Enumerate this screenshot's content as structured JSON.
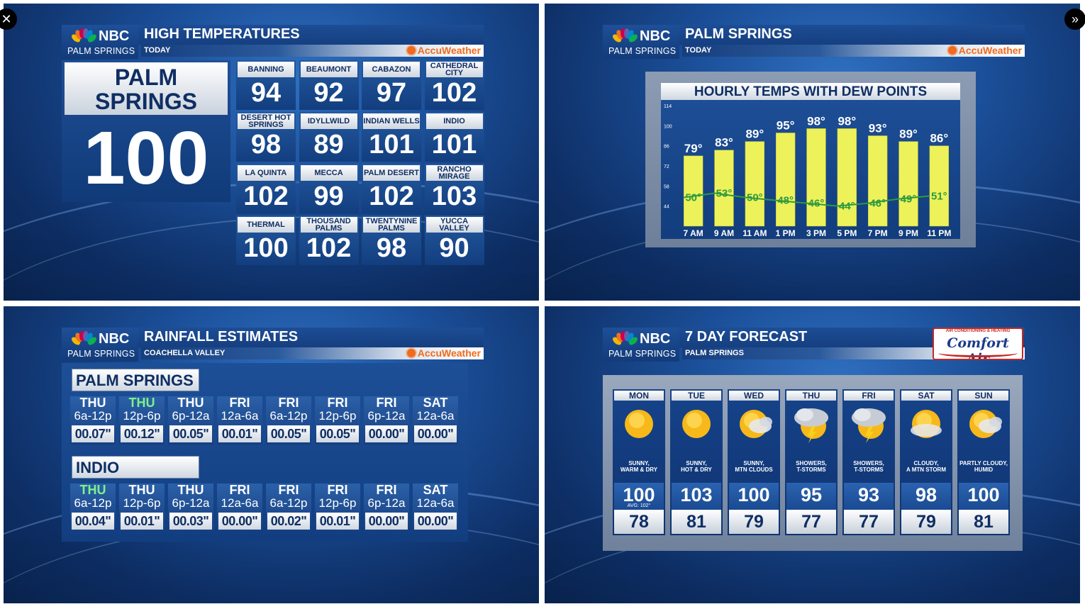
{
  "controls": {
    "close_icon": "✕",
    "next_icon": "»"
  },
  "brand": {
    "network": "NBC",
    "city": "PALM SPRINGS",
    "accuweather": "AccuWeather"
  },
  "high_temps": {
    "title": "HIGH TEMPERATURES",
    "subtitle": "TODAY",
    "feature": {
      "name_line1": "PALM",
      "name_line2": "SPRINGS",
      "value": "100"
    },
    "cities": [
      {
        "name": "BANNING",
        "value": "94"
      },
      {
        "name": "BEAUMONT",
        "value": "92"
      },
      {
        "name": "CABAZON",
        "value": "97"
      },
      {
        "name": "CATHEDRAL CITY",
        "value": "102"
      },
      {
        "name": "DESERT HOT SPRINGS",
        "value": "98"
      },
      {
        "name": "IDYLLWILD",
        "value": "89"
      },
      {
        "name": "INDIAN WELLS",
        "value": "101"
      },
      {
        "name": "INDIO",
        "value": "101"
      },
      {
        "name": "LA QUINTA",
        "value": "102"
      },
      {
        "name": "MECCA",
        "value": "99"
      },
      {
        "name": "PALM DESERT",
        "value": "102"
      },
      {
        "name": "RANCHO MIRAGE",
        "value": "103"
      },
      {
        "name": "THERMAL",
        "value": "100"
      },
      {
        "name": "THOUSAND PALMS",
        "value": "102"
      },
      {
        "name": "TWENTYNINE PALMS",
        "value": "98"
      },
      {
        "name": "YUCCA VALLEY",
        "value": "90"
      }
    ]
  },
  "hourly": {
    "title": "PALM SPRINGS",
    "subtitle": "TODAY",
    "chart_title": "HOURLY TEMPS WITH DEW POINTS",
    "chart_data": {
      "type": "bar",
      "title": "HOURLY TEMPS WITH DEW POINTS",
      "categories": [
        "7 AM",
        "9 AM",
        "11 AM",
        "1 PM",
        "3 PM",
        "5 PM",
        "7 PM",
        "9 PM",
        "11 PM"
      ],
      "series": [
        {
          "values": [
            79,
            83,
            89,
            95,
            98,
            98,
            93,
            89,
            86
          ],
          "labels": [
            "79°",
            "83°",
            "89°",
            "95°",
            "98°",
            "98°",
            "93°",
            "89°",
            "86°"
          ],
          "color": "#eef25a"
        },
        {
          "values": [
            50,
            53,
            50,
            48,
            46,
            44,
            46,
            49,
            51
          ],
          "labels": [
            "50°",
            "53°",
            "50°",
            "48°",
            "46°",
            "44°",
            "46°",
            "49°",
            "51°"
          ],
          "color": "#2f9a3f"
        }
      ],
      "yticks": [
        44,
        58,
        72,
        86,
        100,
        114
      ],
      "ylim": [
        30,
        114
      ],
      "grid": false,
      "xlabel": "",
      "ylabel": ""
    }
  },
  "rainfall": {
    "title": "RAINFALL ESTIMATES",
    "subtitle": "COACHELLA VALLEY",
    "groups": [
      {
        "name": "PALM SPRINGS",
        "periods": [
          {
            "day": "THU",
            "time": "6a-12p",
            "amount": "00.07\"",
            "hl": false
          },
          {
            "day": "THU",
            "time": "12p-6p",
            "amount": "00.12\"",
            "hl": true
          },
          {
            "day": "THU",
            "time": "6p-12a",
            "amount": "00.05\"",
            "hl": false
          },
          {
            "day": "FRI",
            "time": "12a-6a",
            "amount": "00.01\"",
            "hl": false
          },
          {
            "day": "FRI",
            "time": "6a-12p",
            "amount": "00.05\"",
            "hl": false
          },
          {
            "day": "FRI",
            "time": "12p-6p",
            "amount": "00.05\"",
            "hl": false
          },
          {
            "day": "FRI",
            "time": "6p-12a",
            "amount": "00.00\"",
            "hl": false
          },
          {
            "day": "SAT",
            "time": "12a-6a",
            "amount": "00.00\"",
            "hl": false
          }
        ]
      },
      {
        "name": "INDIO",
        "periods": [
          {
            "day": "THU",
            "time": "6a-12p",
            "amount": "00.04\"",
            "hl": true
          },
          {
            "day": "THU",
            "time": "12p-6p",
            "amount": "00.01\"",
            "hl": false
          },
          {
            "day": "THU",
            "time": "6p-12a",
            "amount": "00.03\"",
            "hl": false
          },
          {
            "day": "FRI",
            "time": "12a-6a",
            "amount": "00.00\"",
            "hl": false
          },
          {
            "day": "FRI",
            "time": "6a-12p",
            "amount": "00.02\"",
            "hl": false
          },
          {
            "day": "FRI",
            "time": "12p-6p",
            "amount": "00.01\"",
            "hl": false
          },
          {
            "day": "FRI",
            "time": "6p-12a",
            "amount": "00.00\"",
            "hl": false
          },
          {
            "day": "SAT",
            "time": "12a-6a",
            "amount": "00.00\"",
            "hl": false
          }
        ]
      }
    ]
  },
  "forecast": {
    "title": "7 DAY FORECAST",
    "subtitle": "PALM SPRINGS",
    "sponsor": {
      "tagline": "AIR CONDITIONING & HEATING",
      "name": "Comfort Air"
    },
    "days": [
      {
        "day": "MON",
        "desc1": "SUNNY,",
        "desc2": "WARM & DRY",
        "hi": "100",
        "lo": "78",
        "avg": "AVG: 102°",
        "icon": "sun-icon"
      },
      {
        "day": "TUE",
        "desc1": "SUNNY,",
        "desc2": "HOT & DRY",
        "hi": "103",
        "lo": "81",
        "avg": "",
        "icon": "sun-icon"
      },
      {
        "day": "WED",
        "desc1": "SUNNY,",
        "desc2": "MTN CLOUDS",
        "hi": "100",
        "lo": "79",
        "avg": "",
        "icon": "sun-cloud-icon"
      },
      {
        "day": "THU",
        "desc1": "SHOWERS,",
        "desc2": "T-STORMS",
        "hi": "95",
        "lo": "77",
        "avg": "",
        "icon": "storm-icon"
      },
      {
        "day": "FRI",
        "desc1": "SHOWERS,",
        "desc2": "T-STORMS",
        "hi": "93",
        "lo": "77",
        "avg": "",
        "icon": "storm-icon"
      },
      {
        "day": "SAT",
        "desc1": "CLOUDY,",
        "desc2": "A MTN STORM",
        "hi": "98",
        "lo": "79",
        "avg": "",
        "icon": "cloud-sun-icon"
      },
      {
        "day": "SUN",
        "desc1": "PARTLY CLOUDY,",
        "desc2": "HUMID",
        "hi": "100",
        "lo": "81",
        "avg": "",
        "icon": "sun-cloud-icon"
      }
    ]
  }
}
